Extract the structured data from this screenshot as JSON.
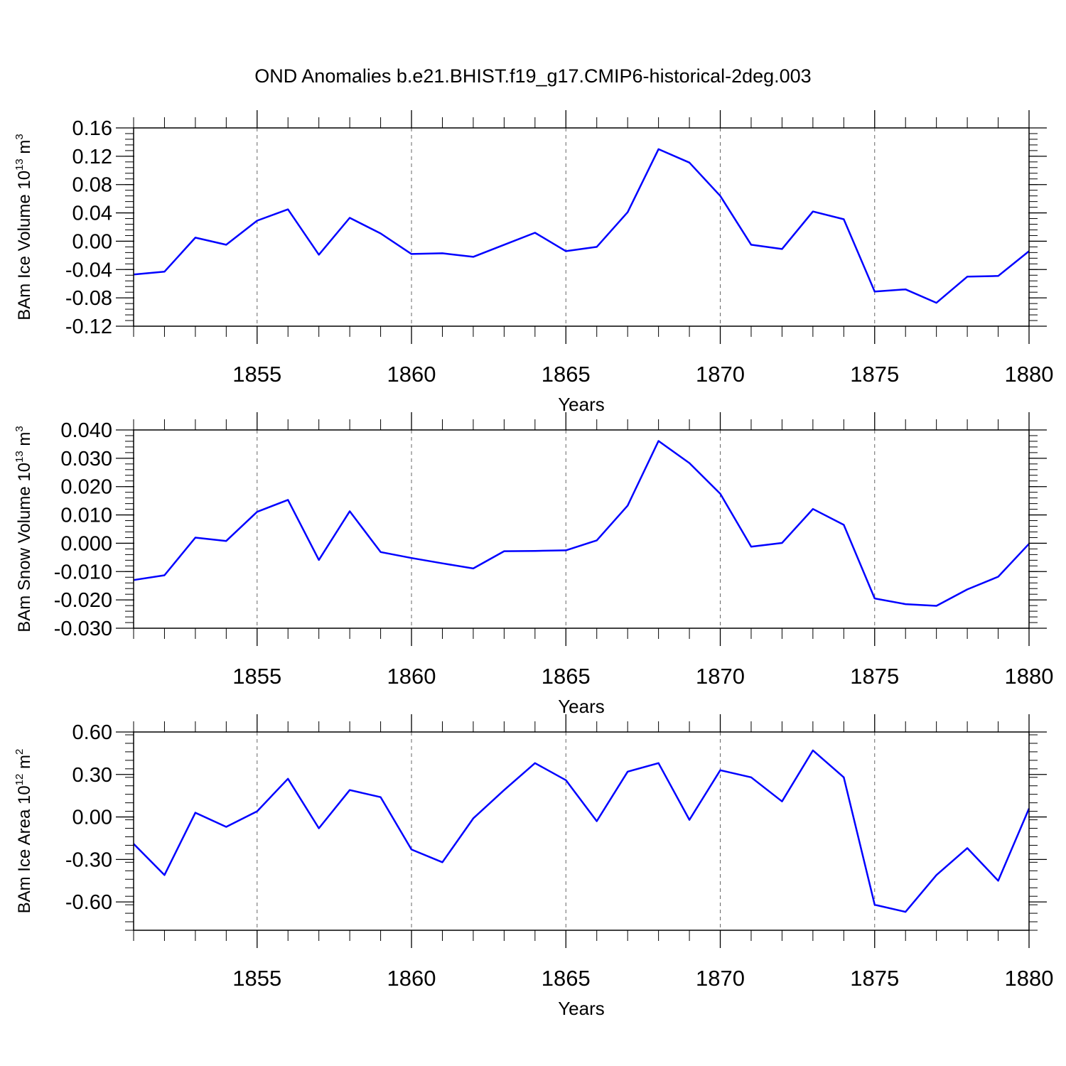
{
  "title": "OND Anomalies b.e21.BHIST.f19_g17.CMIP6-historical-2deg.003",
  "colors": {
    "series": "#0000ff",
    "frame": "#000000",
    "grid": "#666666"
  },
  "chart_data": [
    {
      "type": "line",
      "ylabel_main": "BAm Ice Volume 10",
      "ylabel_exp": "13",
      "ylabel_unit": " m",
      "ylabel_unit_exp": "3",
      "xlabel": "Years",
      "xlim": [
        1851,
        1880
      ],
      "ylim": [
        -0.12,
        0.16
      ],
      "yticks": [
        -0.12,
        -0.08,
        -0.04,
        0.0,
        0.04,
        0.08,
        0.12,
        0.16
      ],
      "ytick_labels": [
        "-0.12",
        "-0.08",
        "-0.04",
        "0.00",
        "0.04",
        "0.08",
        "0.12",
        "0.16"
      ],
      "xticks": [
        1855,
        1860,
        1865,
        1870,
        1875,
        1880
      ],
      "xtick_labels": [
        "1855",
        "1860",
        "1865",
        "1870",
        "1875",
        "1880"
      ],
      "grid": "vertical dashed at labeled years",
      "x": [
        1851,
        1852,
        1853,
        1854,
        1855,
        1856,
        1857,
        1858,
        1859,
        1860,
        1861,
        1862,
        1863,
        1864,
        1865,
        1866,
        1867,
        1868,
        1869,
        1870,
        1871,
        1872,
        1873,
        1874,
        1875,
        1876,
        1877,
        1878,
        1879,
        1880
      ],
      "values": [
        -0.047,
        -0.043,
        0.005,
        -0.005,
        0.029,
        0.045,
        -0.019,
        0.033,
        0.011,
        -0.018,
        -0.017,
        -0.022,
        -0.005,
        0.012,
        -0.014,
        -0.008,
        0.041,
        0.13,
        0.111,
        0.064,
        -0.005,
        -0.011,
        0.042,
        0.031,
        -0.071,
        -0.068,
        -0.087,
        -0.05,
        -0.049,
        -0.014
      ]
    },
    {
      "type": "line",
      "ylabel_main": "BAm Snow Volume 10",
      "ylabel_exp": "13",
      "ylabel_unit": " m",
      "ylabel_unit_exp": "3",
      "xlabel": "Years",
      "xlim": [
        1851,
        1880
      ],
      "ylim": [
        -0.03,
        0.04
      ],
      "yticks": [
        -0.03,
        -0.02,
        -0.01,
        0.0,
        0.01,
        0.02,
        0.03,
        0.04
      ],
      "ytick_labels": [
        "-0.030",
        "-0.020",
        "-0.010",
        "0.000",
        "0.010",
        "0.020",
        "0.030",
        "0.040"
      ],
      "xticks": [
        1855,
        1860,
        1865,
        1870,
        1875,
        1880
      ],
      "xtick_labels": [
        "1855",
        "1860",
        "1865",
        "1870",
        "1875",
        "1880"
      ],
      "grid": "vertical dashed at labeled years",
      "x": [
        1851,
        1852,
        1853,
        1854,
        1855,
        1856,
        1857,
        1858,
        1859,
        1860,
        1861,
        1862,
        1863,
        1864,
        1865,
        1866,
        1867,
        1868,
        1869,
        1870,
        1871,
        1872,
        1873,
        1874,
        1875,
        1876,
        1877,
        1878,
        1879,
        1880
      ],
      "values": [
        -0.013,
        -0.0113,
        0.002,
        0.0008,
        0.0111,
        0.0153,
        -0.0059,
        0.0113,
        -0.0031,
        -0.0052,
        -0.0071,
        -0.0089,
        -0.0028,
        -0.0027,
        -0.0025,
        0.001,
        0.0133,
        0.0361,
        0.0283,
        0.0175,
        -0.0012,
        0.0001,
        0.0121,
        0.0065,
        -0.0195,
        -0.0215,
        -0.0221,
        -0.0163,
        -0.0118,
        -0.0002
      ]
    },
    {
      "type": "line",
      "ylabel_main": "BAm Ice Area 10",
      "ylabel_exp": "12",
      "ylabel_unit": " m",
      "ylabel_unit_exp": "2",
      "xlabel": "Years",
      "xlim": [
        1851,
        1880
      ],
      "ylim": [
        -0.8,
        0.6
      ],
      "yticks": [
        -0.6,
        -0.3,
        0.0,
        0.3,
        0.6
      ],
      "ytick_labels": [
        "-0.60",
        "-0.30",
        "0.00",
        "0.30",
        "0.60"
      ],
      "xticks": [
        1855,
        1860,
        1865,
        1870,
        1875,
        1880
      ],
      "xtick_labels": [
        "1855",
        "1860",
        "1865",
        "1870",
        "1875",
        "1880"
      ],
      "grid": "vertical dashed at labeled years",
      "x": [
        1851,
        1852,
        1853,
        1854,
        1855,
        1856,
        1857,
        1858,
        1859,
        1860,
        1861,
        1862,
        1863,
        1864,
        1865,
        1866,
        1867,
        1868,
        1869,
        1870,
        1871,
        1872,
        1873,
        1874,
        1875,
        1876,
        1877,
        1878,
        1879,
        1880
      ],
      "values": [
        -0.19,
        -0.41,
        0.03,
        -0.07,
        0.04,
        0.27,
        -0.08,
        0.19,
        0.14,
        -0.23,
        -0.32,
        -0.01,
        0.19,
        0.38,
        0.26,
        -0.03,
        0.32,
        0.38,
        -0.02,
        0.33,
        0.28,
        0.11,
        0.47,
        0.28,
        -0.62,
        -0.67,
        -0.41,
        -0.22,
        -0.45,
        0.06
      ]
    }
  ]
}
